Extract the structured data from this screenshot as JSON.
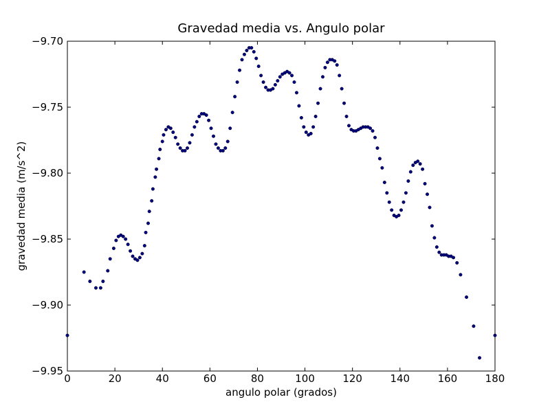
{
  "chart_data": {
    "type": "scatter",
    "title": "Gravedad media vs. Angulo polar",
    "x_label": "angulo polar (grados)",
    "y_label": "gravedad media (m/s^2)",
    "color": "#000080",
    "xlim": [
      0,
      180
    ],
    "ylim": [
      -9.95,
      -9.7
    ],
    "xticks": [
      0,
      20,
      40,
      60,
      80,
      100,
      120,
      140,
      160,
      180
    ],
    "yticks": [
      {
        "value": -9.95,
        "label": "−9.95"
      },
      {
        "value": -9.9,
        "label": "−9.90"
      },
      {
        "value": -9.85,
        "label": "−9.85"
      },
      {
        "value": -9.8,
        "label": "−9.80"
      },
      {
        "value": -9.75,
        "label": "−9.75"
      },
      {
        "value": -9.7,
        "label": "−9.70"
      }
    ],
    "x": [
      0,
      7,
      9.5,
      12,
      14,
      15,
      17,
      18,
      19.5,
      20.5,
      21.5,
      22.5,
      23.5,
      24.5,
      25.5,
      26.5,
      27.5,
      28.5,
      29.5,
      30.5,
      31.5,
      32.5,
      33,
      34,
      34.5,
      35.5,
      36,
      37,
      37.5,
      38.5,
      39,
      40,
      40.5,
      41.5,
      42.5,
      43.5,
      44.5,
      45.5,
      46.5,
      47.5,
      48.5,
      49.5,
      50.5,
      51.5,
      52.5,
      53.5,
      54.5,
      55.5,
      56.5,
      57.5,
      58.5,
      59.5,
      60.5,
      61.5,
      62.5,
      63.5,
      64.5,
      65.5,
      66.5,
      67.5,
      68.5,
      69.5,
      70.5,
      71.5,
      72.5,
      73.5,
      74.5,
      75.5,
      76.5,
      77.5,
      78.5,
      79.5,
      80.5,
      81.5,
      82.5,
      83.5,
      84.5,
      85.5,
      86.5,
      87.5,
      88.5,
      89.5,
      90.5,
      91.5,
      92.5,
      93.5,
      94.5,
      95.5,
      96.5,
      97.5,
      98.5,
      99.5,
      100.5,
      101.5,
      102.5,
      103.5,
      104.5,
      105.5,
      106.5,
      107.5,
      108.5,
      109.5,
      110.5,
      111.5,
      112.5,
      113.5,
      114.5,
      115.5,
      116.5,
      117.5,
      118.5,
      119.5,
      120.5,
      121.5,
      122.5,
      123.5,
      124.5,
      125.5,
      126.5,
      127.5,
      128.5,
      129.5,
      130.5,
      131.5,
      132.5,
      133.5,
      134.5,
      135.5,
      136.5,
      137.5,
      138.5,
      139.5,
      140.5,
      141.5,
      142.5,
      143.5,
      144.5,
      145.5,
      146.5,
      147.5,
      148.5,
      149.5,
      150.5,
      151.5,
      152.5,
      153.5,
      154.5,
      155.5,
      156.5,
      157.5,
      158.5,
      159.5,
      160.5,
      161.5,
      162.5,
      164,
      165.5,
      168,
      171,
      173.5,
      180
    ],
    "values": [
      -9.923,
      -9.875,
      -9.882,
      -9.887,
      -9.887,
      -9.882,
      -9.874,
      -9.865,
      -9.857,
      -9.851,
      -9.848,
      -9.847,
      -9.848,
      -9.85,
      -9.854,
      -9.859,
      -9.863,
      -9.865,
      -9.866,
      -9.864,
      -9.861,
      -9.855,
      -9.845,
      -9.838,
      -9.829,
      -9.821,
      -9.812,
      -9.803,
      -9.797,
      -9.789,
      -9.782,
      -9.776,
      -9.771,
      -9.767,
      -9.765,
      -9.766,
      -9.769,
      -9.773,
      -9.778,
      -9.781,
      -9.783,
      -9.783,
      -9.781,
      -9.777,
      -9.771,
      -9.765,
      -9.761,
      -9.757,
      -9.755,
      -9.755,
      -9.756,
      -9.76,
      -9.766,
      -9.772,
      -9.778,
      -9.781,
      -9.783,
      -9.783,
      -9.781,
      -9.776,
      -9.766,
      -9.754,
      -9.742,
      -9.731,
      -9.722,
      -9.714,
      -9.71,
      -9.707,
      -9.705,
      -9.705,
      -9.708,
      -9.713,
      -9.719,
      -9.726,
      -9.731,
      -9.735,
      -9.737,
      -9.737,
      -9.736,
      -9.733,
      -9.73,
      -9.727,
      -9.725,
      -9.724,
      -9.723,
      -9.724,
      -9.726,
      -9.731,
      -9.739,
      -9.749,
      -9.758,
      -9.765,
      -9.769,
      -9.771,
      -9.77,
      -9.765,
      -9.757,
      -9.747,
      -9.736,
      -9.727,
      -9.72,
      -9.716,
      -9.714,
      -9.714,
      -9.715,
      -9.718,
      -9.726,
      -9.736,
      -9.747,
      -9.757,
      -9.764,
      -9.767,
      -9.768,
      -9.768,
      -9.767,
      -9.766,
      -9.765,
      -9.765,
      -9.765,
      -9.766,
      -9.768,
      -9.773,
      -9.781,
      -9.789,
      -9.796,
      -9.807,
      -9.815,
      -9.822,
      -9.828,
      -9.832,
      -9.833,
      -9.832,
      -9.828,
      -9.822,
      -9.815,
      -9.806,
      -9.799,
      -9.794,
      -9.792,
      -9.791,
      -9.793,
      -9.797,
      -9.808,
      -9.816,
      -9.826,
      -9.84,
      -9.849,
      -9.856,
      -9.86,
      -9.862,
      -9.862,
      -9.862,
      -9.863,
      -9.863,
      -9.864,
      -9.868,
      -9.877,
      -9.894,
      -9.916,
      -9.94,
      -9.923
    ]
  }
}
